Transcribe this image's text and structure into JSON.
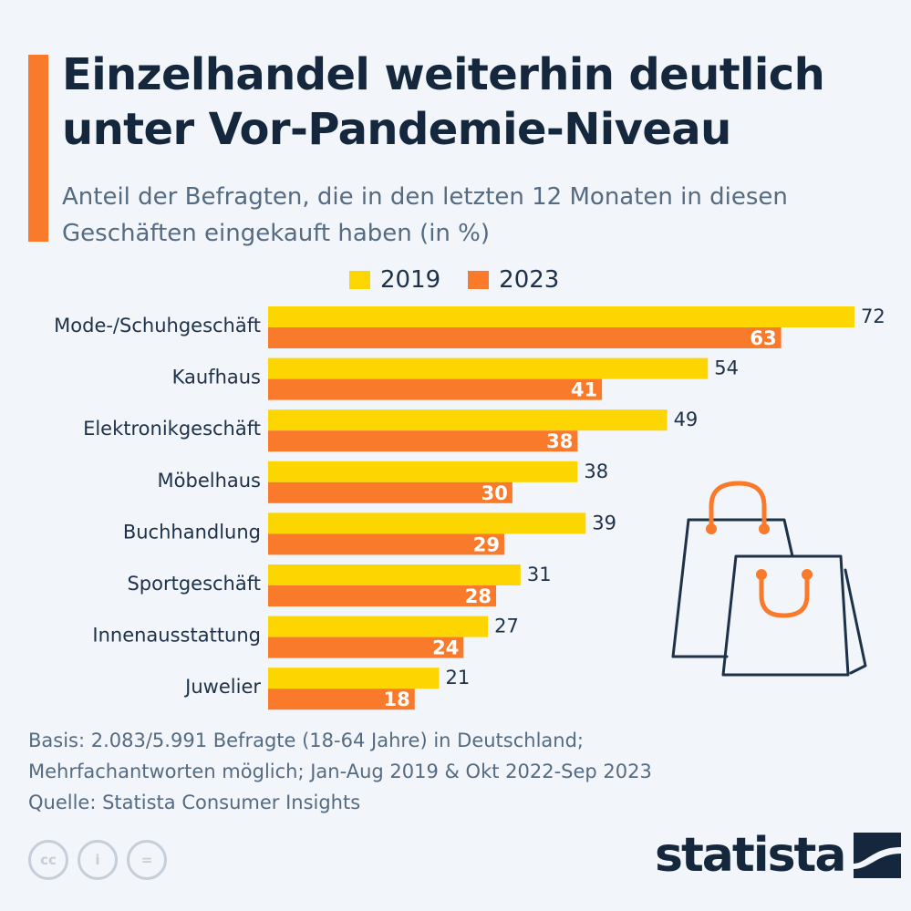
{
  "title": "Einzelhandel weiterhin deutlich unter Vor-Pandemie-Niveau",
  "subtitle": "Anteil der Befragten, die in den letzten 12 Monaten in diesen Geschäften eingekauft haben (in %)",
  "colors": {
    "accent": "#f97a2b",
    "series_2019": "#fdd500",
    "series_2023": "#f97a2b",
    "text": "#1d3149",
    "muted": "#556b82"
  },
  "chart_data": {
    "type": "bar",
    "orientation": "horizontal",
    "categories": [
      "Mode-/Schuhgeschäft",
      "Kaufhaus",
      "Elektronikgeschäft",
      "Möbelhaus",
      "Buchhandlung",
      "Sportgeschäft",
      "Innenausstattung",
      "Juwelier"
    ],
    "series": [
      {
        "name": "2019",
        "values": [
          72,
          54,
          49,
          38,
          39,
          31,
          27,
          21
        ]
      },
      {
        "name": "2023",
        "values": [
          63,
          41,
          38,
          30,
          29,
          28,
          24,
          18
        ]
      }
    ],
    "title": "Einzelhandel weiterhin deutlich unter Vor-Pandemie-Niveau",
    "xlabel": "",
    "ylabel": "",
    "xlim": [
      0,
      72
    ],
    "grid": false,
    "legend_position": "top"
  },
  "footnote": {
    "basis_line1": "Basis: 2.083/5.991 Befragte (18-64 Jahre) in Deutschland;",
    "basis_line2": "Mehrfachantworten möglich; Jan-Aug 2019 & Okt 2022-Sep 2023",
    "source": "Quelle: Statista Consumer Insights"
  },
  "license_icons": [
    {
      "name": "cc-icon",
      "glyph": "cc"
    },
    {
      "name": "attribution-icon",
      "glyph": "i"
    },
    {
      "name": "no-derivatives-icon",
      "glyph": "="
    }
  ],
  "brand": {
    "name": "statista"
  }
}
